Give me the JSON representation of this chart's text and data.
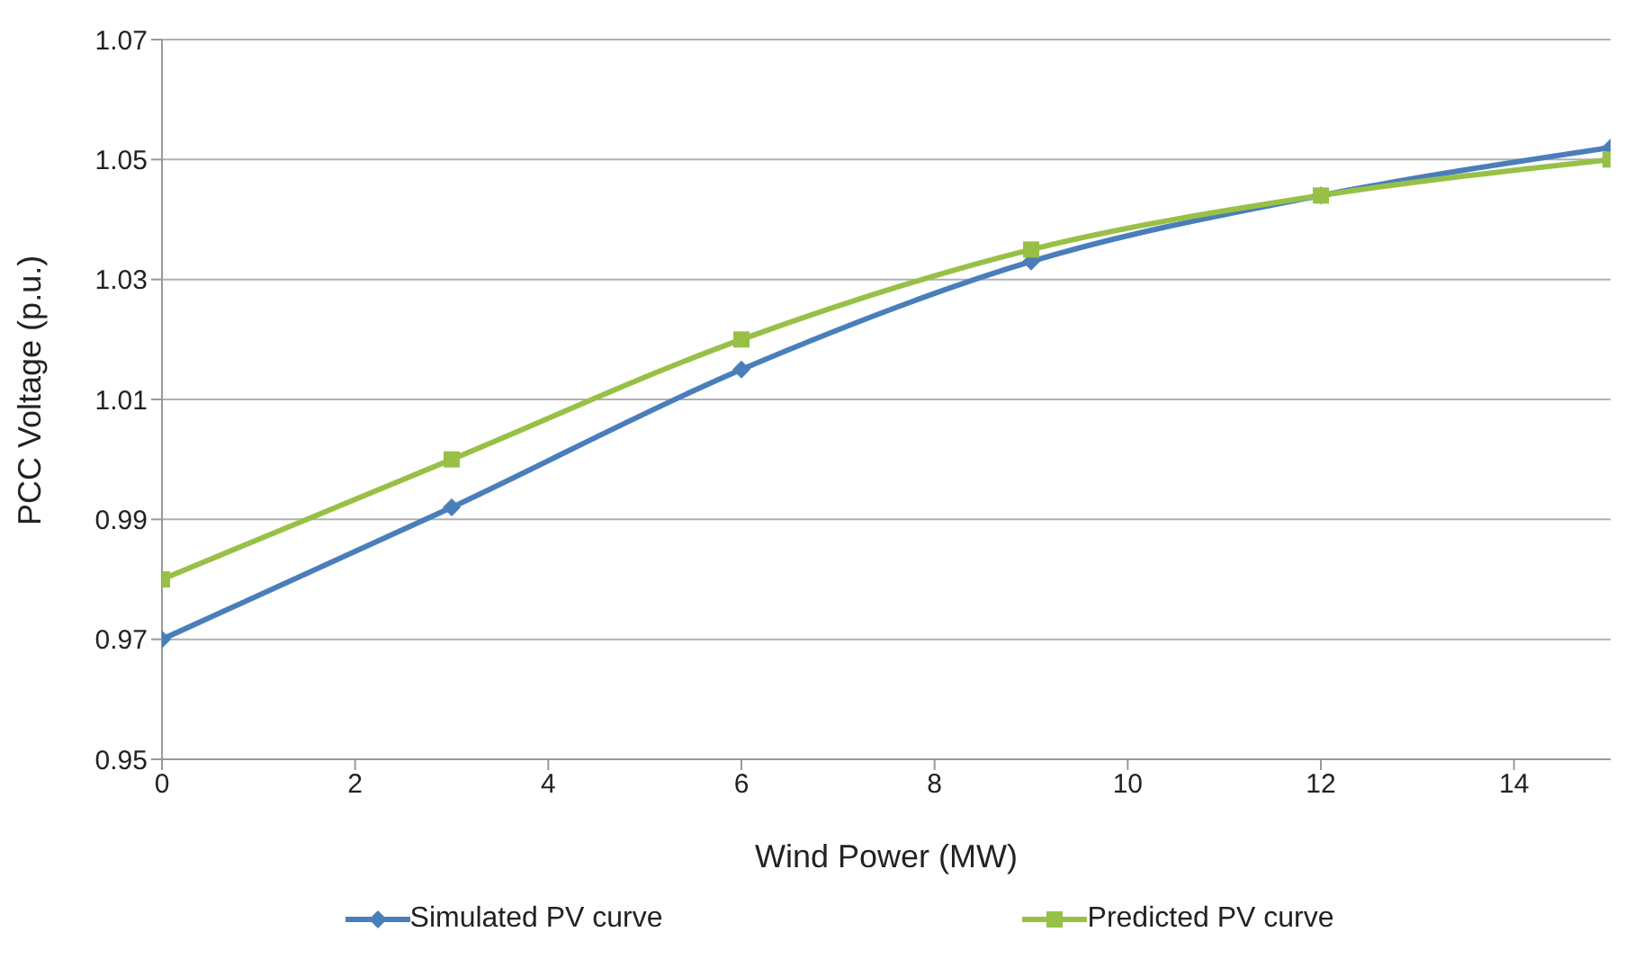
{
  "chart_data": {
    "type": "line",
    "xlabel": "Wind Power (MW)",
    "ylabel": "PCC Voltage (p.u.)",
    "x": [
      0,
      3,
      6,
      9,
      12,
      15
    ],
    "series": [
      {
        "name": "Simulated PV curve",
        "color": "#4a7ebb",
        "marker": "diamond",
        "values": [
          0.97,
          0.992,
          1.015,
          1.033,
          1.044,
          1.052
        ]
      },
      {
        "name": "Predicted PV curve",
        "color": "#98c047",
        "marker": "square",
        "values": [
          0.98,
          1.0,
          1.02,
          1.035,
          1.044,
          1.05
        ]
      }
    ],
    "xlim": [
      0,
      15
    ],
    "xticks": [
      0,
      2,
      4,
      6,
      8,
      10,
      12,
      14
    ],
    "ylim": [
      0.95,
      1.07
    ],
    "yticks": [
      0.95,
      0.97,
      0.99,
      1.01,
      1.03,
      1.05,
      1.07
    ],
    "grid": "y",
    "legend": "bottom",
    "line_style": "solid"
  }
}
